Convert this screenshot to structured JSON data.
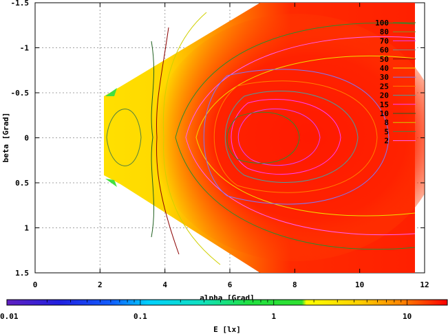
{
  "chart_data": {
    "type": "heatmap",
    "title": "",
    "xlabel": "alpha [Grad]",
    "ylabel": "beta [Grad]",
    "xlim": [
      0,
      12
    ],
    "ylim": [
      -1.5,
      1.5
    ],
    "y_inverted": true,
    "x_ticks": [
      "0",
      "2",
      "4",
      "6",
      "8",
      "10",
      "12"
    ],
    "y_ticks": [
      "-1.5",
      "-1",
      "-0.5",
      "0",
      "0.5",
      "1",
      "1.5"
    ],
    "x_tick_values": [
      0,
      2,
      4,
      6,
      8,
      10,
      12
    ],
    "y_tick_values": [
      -1.5,
      -1,
      -0.5,
      0,
      0.5,
      1,
      1.5
    ],
    "grid": true,
    "legend_position": "top-right",
    "contour_levels": [
      {
        "label": "100",
        "color": "#2d8a2d"
      },
      {
        "label": "80",
        "color": "#7a9a2a"
      },
      {
        "label": "70",
        "color": "#e040ff"
      },
      {
        "label": "60",
        "color": "#7a8a8a"
      },
      {
        "label": "50",
        "color": "#8b0000"
      },
      {
        "label": "40",
        "color": "#f0e000"
      },
      {
        "label": "30",
        "color": "#7a7aff"
      },
      {
        "label": "25",
        "color": "#ff8000"
      },
      {
        "label": "20",
        "color": "#4aa0a0"
      },
      {
        "label": "15",
        "color": "#ff40ff"
      },
      {
        "label": "10",
        "color": "#206020"
      },
      {
        "label": "8",
        "color": "#d0d000"
      },
      {
        "label": "5",
        "color": "#508040"
      },
      {
        "label": "2",
        "color": "#ff60ff"
      }
    ],
    "colorbar": {
      "label": "E [lx]",
      "scale": "log",
      "range": [
        0.01,
        20
      ],
      "ticks": [
        "0.01",
        "0.1",
        "1",
        "10"
      ],
      "tick_values": [
        0.01,
        0.1,
        1,
        10
      ]
    }
  }
}
